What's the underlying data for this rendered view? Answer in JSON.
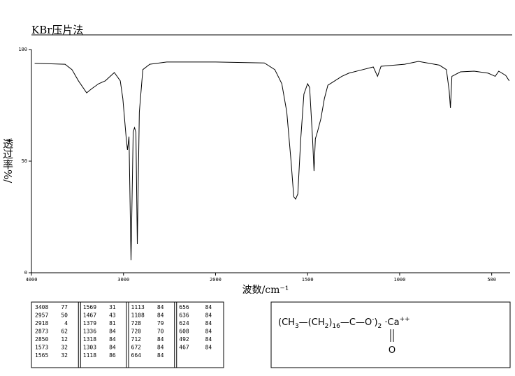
{
  "chart_data": {
    "type": "line",
    "title": "KBr压片法",
    "ylabel": "透过率%/",
    "xlabel": "波数/cm⁻¹",
    "color": "#000000",
    "xlim": [
      4000,
      400
    ],
    "xticks": [
      4000,
      3000,
      2000,
      1500,
      1000,
      500
    ],
    "ylim": [
      0,
      100
    ],
    "yticks": [
      0,
      50,
      100
    ],
    "x": [
      3965,
      3635,
      3560,
      3490,
      3400,
      3343,
      3270,
      3197,
      3100,
      3035,
      3007,
      2970,
      2957,
      2940,
      2918,
      2895,
      2880,
      2865,
      2850,
      2828,
      2790,
      2715,
      2530,
      2000,
      1735,
      1678,
      1640,
      1613,
      1590,
      1575,
      1565,
      1553,
      1537,
      1520,
      1500,
      1489,
      1473,
      1465,
      1458,
      1447,
      1428,
      1409,
      1390,
      1352,
      1314,
      1276,
      1200,
      1143,
      1120,
      1101,
      973,
      898,
      784,
      746,
      731,
      724,
      716,
      670,
      595,
      519,
      481,
      462,
      424,
      405
    ],
    "values": [
      93.8,
      93.4,
      91,
      86,
      80.6,
      82.5,
      84.7,
      86,
      89.7,
      86,
      78,
      60,
      55,
      61,
      5.6,
      63,
      65,
      63,
      12.8,
      72,
      91,
      93.4,
      94.4,
      94.4,
      94,
      91,
      84.7,
      72,
      50,
      34,
      33,
      35.3,
      60,
      80,
      84.7,
      83,
      60,
      45.6,
      60,
      63,
      69,
      78,
      84,
      86,
      88,
      89.4,
      91,
      92.2,
      88,
      92.5,
      93.4,
      94.7,
      93,
      91,
      81.6,
      73.8,
      88,
      90,
      90.3,
      89.4,
      88,
      90.3,
      88.4,
      86
    ]
  },
  "peak_table": [
    [
      [
        3408,
        77
      ],
      [
        2957,
        50
      ],
      [
        2918,
        4
      ],
      [
        2873,
        62
      ],
      [
        2850,
        12
      ],
      [
        1573,
        32
      ],
      [
        1565,
        32
      ]
    ],
    [
      [
        1569,
        31
      ],
      [
        1467,
        43
      ],
      [
        1379,
        81
      ],
      [
        1336,
        84
      ],
      [
        1318,
        84
      ],
      [
        1303,
        84
      ],
      [
        1118,
        86
      ]
    ],
    [
      [
        1113,
        84
      ],
      [
        1108,
        84
      ],
      [
        728,
        79
      ],
      [
        720,
        70
      ],
      [
        712,
        84
      ],
      [
        672,
        84
      ],
      [
        664,
        84
      ]
    ],
    [
      [
        656,
        84
      ],
      [
        636,
        84
      ],
      [
        624,
        84
      ],
      [
        608,
        84
      ],
      [
        492,
        84
      ],
      [
        467,
        84
      ]
    ]
  ],
  "formula": {
    "segments": [
      "(CH",
      "3",
      "—(CH",
      "2",
      ")",
      "16",
      "—C—O",
      "-",
      ")",
      "2",
      " ·Ca",
      "++"
    ],
    "carbonyl_o": "O"
  }
}
